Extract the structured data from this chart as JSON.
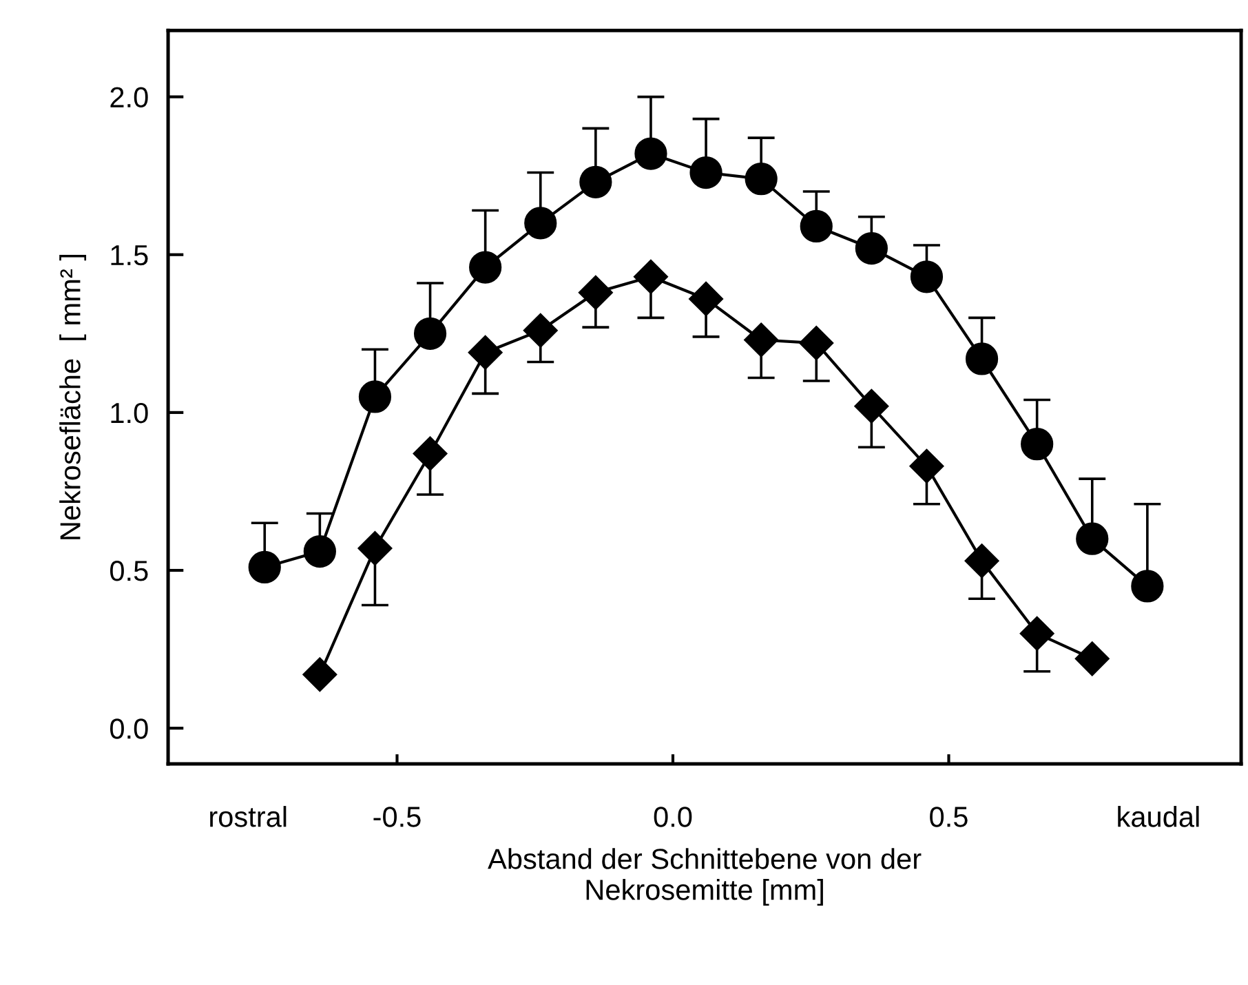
{
  "chart_data": {
    "type": "line",
    "xlabel": "Abstand der Schnittebene von der\nNekrosemitte [mm]",
    "ylabel": "Nekrosefläche  [ mm² ]",
    "xlim": [
      -0.915,
      1.03
    ],
    "ylim": [
      -0.113,
      2.21
    ],
    "xticks": [
      {
        "value": -0.77,
        "label": "rostral"
      },
      -0.5,
      {
        "value": 0.0,
        "label": "0.0"
      },
      0.5,
      {
        "value": 0.88,
        "label": "kaudal"
      }
    ],
    "yticks": [
      {
        "value": 0.0,
        "label": "0.0"
      },
      0.5,
      {
        "value": 1.0,
        "label": "1.0"
      },
      1.5,
      {
        "value": 2.0,
        "label": "2.0"
      }
    ],
    "grid": false,
    "line_style": "solid",
    "series": [
      {
        "color": "#000000",
        "marker": "circle",
        "x": [
          -0.74,
          -0.64,
          -0.54,
          -0.44,
          -0.34,
          -0.24,
          -0.14,
          -0.04,
          0.06,
          0.16,
          0.26,
          0.36,
          0.46,
          0.56,
          0.66,
          0.76,
          0.86
        ],
        "values": [
          0.51,
          0.56,
          1.05,
          1.25,
          1.46,
          1.6,
          1.73,
          1.82,
          1.76,
          1.74,
          1.59,
          1.52,
          1.43,
          1.17,
          0.9,
          0.6,
          0.45
        ],
        "errors": [
          [
            0.51,
            0.65
          ],
          [
            0.56,
            0.68
          ],
          [
            1.05,
            1.2
          ],
          [
            1.25,
            1.41
          ],
          [
            1.46,
            1.64
          ],
          [
            1.6,
            1.76
          ],
          [
            1.73,
            1.9
          ],
          [
            1.82,
            2.0
          ],
          [
            1.76,
            1.93
          ],
          [
            1.74,
            1.87
          ],
          [
            1.59,
            1.7
          ],
          [
            1.52,
            1.62
          ],
          [
            1.43,
            1.53
          ],
          [
            1.17,
            1.3
          ],
          [
            0.9,
            1.04
          ],
          [
            0.6,
            0.79
          ],
          [
            0.45,
            0.71
          ]
        ]
      },
      {
        "color": "#000000",
        "marker": "diamond",
        "x": [
          -0.64,
          -0.54,
          -0.44,
          -0.34,
          -0.24,
          -0.14,
          -0.04,
          0.06,
          0.16,
          0.26,
          0.36,
          0.46,
          0.56,
          0.66,
          0.76
        ],
        "values": [
          0.17,
          0.57,
          0.87,
          1.19,
          1.26,
          1.38,
          1.43,
          1.36,
          1.23,
          1.22,
          1.02,
          0.83,
          0.53,
          0.3,
          0.22
        ],
        "errors": [
          null,
          [
            0.39,
            0.57
          ],
          [
            0.74,
            0.87
          ],
          [
            1.06,
            1.19
          ],
          [
            1.16,
            1.26
          ],
          [
            1.27,
            1.38
          ],
          [
            1.3,
            1.43
          ],
          [
            1.24,
            1.36
          ],
          [
            1.11,
            1.23
          ],
          [
            1.1,
            1.22
          ],
          [
            0.89,
            1.02
          ],
          [
            0.71,
            0.83
          ],
          [
            0.41,
            0.53
          ],
          [
            0.18,
            0.3
          ],
          null
        ]
      }
    ]
  }
}
